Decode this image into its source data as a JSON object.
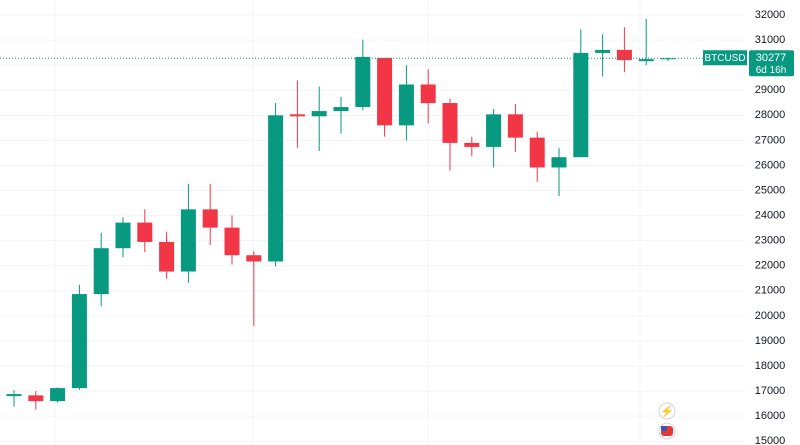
{
  "chart_data": {
    "type": "candlestick",
    "symbol": "BTCUSD",
    "countdown": "6d 16h",
    "open": [
      16800,
      16830,
      16600,
      17120,
      20870,
      22700,
      23720,
      22950,
      21770,
      24250,
      23520,
      22420,
      22170,
      28040,
      27960,
      28170,
      28330,
      30290,
      27600,
      29230,
      28490,
      26900,
      26740,
      28040,
      27110,
      25920,
      26330,
      30490,
      30610,
      30160,
      30240
    ],
    "high": [
      17040,
      17000,
      17150,
      21240,
      23320,
      23930,
      24250,
      23360,
      25270,
      25270,
      24010,
      22580,
      28490,
      29390,
      29150,
      28740,
      31020,
      30290,
      30000,
      29840,
      28660,
      27150,
      28250,
      28450,
      27350,
      26700,
      31430,
      31230,
      31510,
      31840,
      30300
    ],
    "low": [
      16380,
      16260,
      16550,
      17050,
      20380,
      22340,
      22540,
      21480,
      21320,
      22830,
      22050,
      19600,
      21970,
      26700,
      26580,
      27270,
      28210,
      27150,
      26990,
      27680,
      25800,
      26370,
      25920,
      26540,
      25350,
      24780,
      26330,
      29550,
      29720,
      30000,
      30160
    ],
    "close": [
      16880,
      16600,
      17120,
      20870,
      22700,
      23720,
      22950,
      21770,
      24250,
      23520,
      22420,
      22170,
      28000,
      27960,
      28170,
      28330,
      30330,
      27600,
      29230,
      28490,
      26900,
      26740,
      28040,
      27110,
      25920,
      26330,
      30490,
      30610,
      30200,
      30240,
      30277
    ],
    "up_color": "#089981",
    "down_color": "#f23645",
    "ylim": [
      14850,
      32600
    ],
    "yticks": [
      15000,
      16000,
      17000,
      18000,
      19000,
      20000,
      21000,
      22000,
      23000,
      24000,
      25000,
      26000,
      27000,
      28000,
      29000,
      30000,
      31000,
      32000
    ],
    "grid": true
  }
}
